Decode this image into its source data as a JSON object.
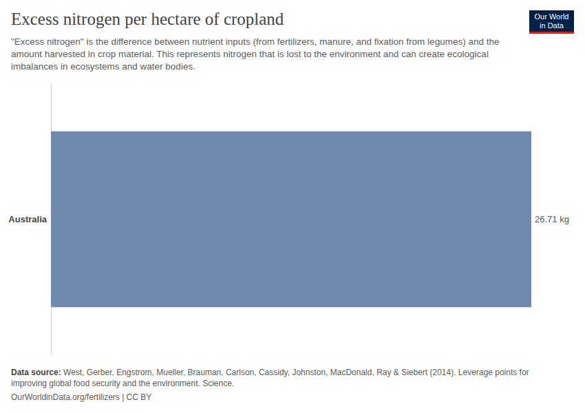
{
  "chart_data": {
    "type": "bar",
    "orientation": "horizontal",
    "title": "Excess nitrogen per hectare of cropland",
    "subtitle": "\"Excess nitrogen\" is the difference between nutrient inputs (from fertilizers, manure, and fixation from legumes) and the amount harvested in crop material. This represents nitrogen that is lost to the environment and can create ecological imbalances in ecosystems and water bodies.",
    "logo": "Our World in Data",
    "source_label": "Data source:",
    "source": "West, Gerber, Engstrom, Mueller, Brauman, Carlson, Cassidy, Johnston, MacDonald, Ray & Siebert (2014). Leverage points for improving global food security and the environment. Science.",
    "footer": "OurWorldinData.org/fertilizers | CC BY",
    "categories": [
      "Australia"
    ],
    "values": [
      26.71
    ],
    "value_labels": [
      "26.71 kg"
    ],
    "color": "#6f89b1",
    "xlim": [
      0,
      26.71
    ],
    "grid": false,
    "data_labels": true,
    "tick_labels": "y"
  }
}
